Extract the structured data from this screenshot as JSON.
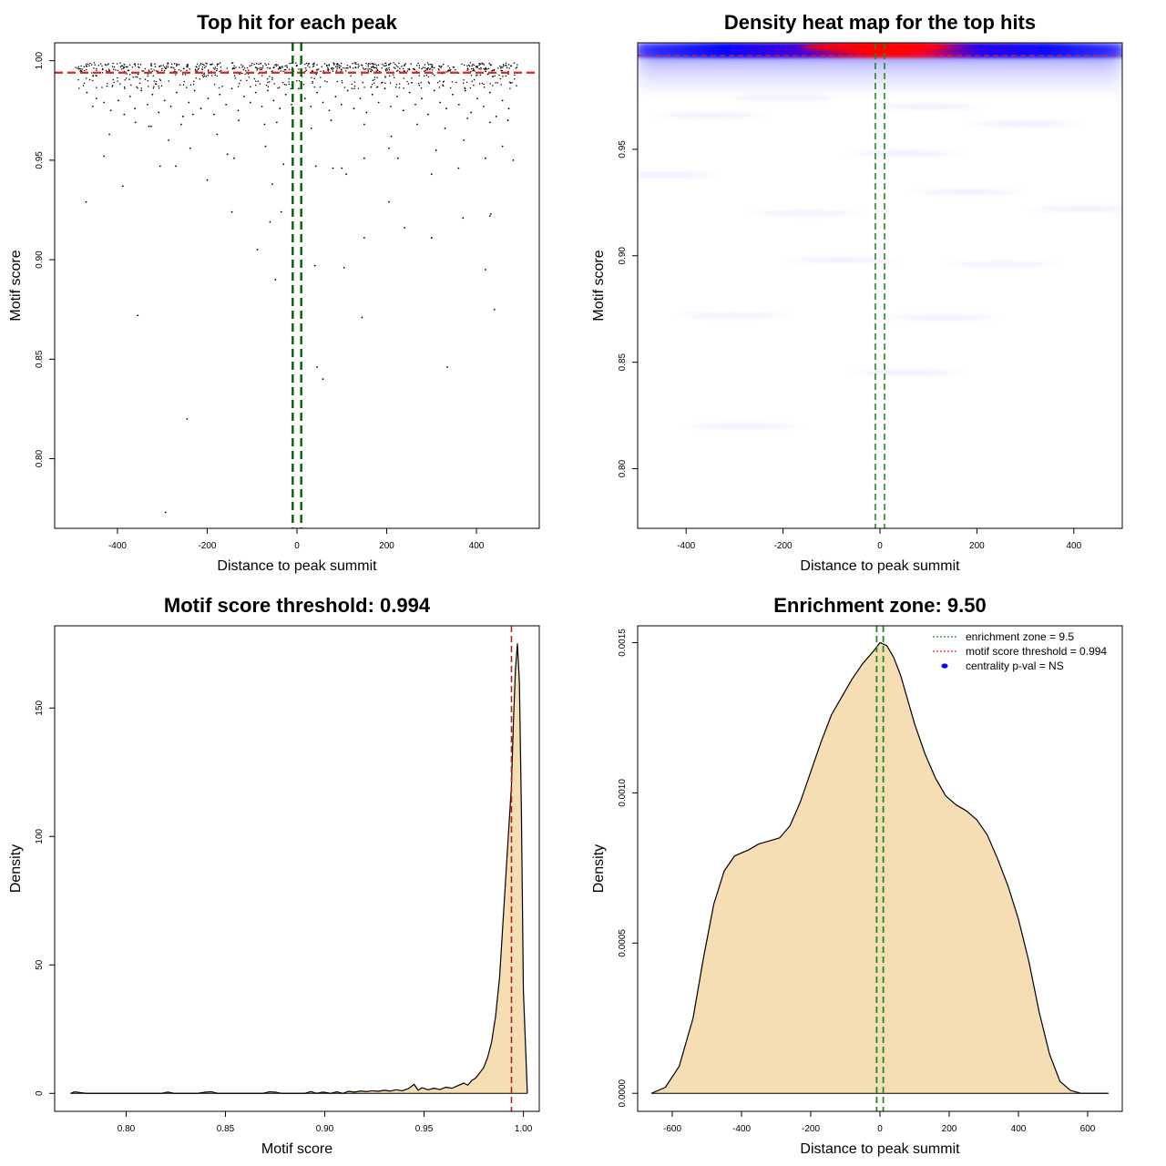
{
  "chart_data": [
    {
      "type": "scatter",
      "title": "Top hit for each peak",
      "xlabel": "Distance to peak summit",
      "ylabel": "Motif score",
      "xlim": [
        -540,
        540
      ],
      "ylim": [
        0.765,
        1.009
      ],
      "xticks": [
        -400,
        -200,
        0,
        200,
        400
      ],
      "yticks": [
        0.8,
        0.85,
        0.9,
        0.95,
        1.0
      ],
      "xtick_labels": [
        "-400",
        "-200",
        "0",
        "200",
        "400"
      ],
      "ytick_labels": [
        "0.80",
        "0.85",
        "0.90",
        "0.95",
        "1.00"
      ],
      "threshold_hline": 0.994,
      "zone_vlines": [
        -9.5,
        9.5
      ],
      "colors": {
        "points": "#000000",
        "threshold": "#dd2222",
        "zone": "#006400"
      },
      "points": [
        [
          -468,
          0.984
        ],
        [
          -455,
          0.977
        ],
        [
          -447,
          0.981
        ],
        [
          -430,
          0.979
        ],
        [
          -415,
          0.975
        ],
        [
          -398,
          0.98
        ],
        [
          -385,
          0.973
        ],
        [
          -372,
          0.982
        ],
        [
          -361,
          0.976
        ],
        [
          -347,
          0.985
        ],
        [
          -333,
          0.978
        ],
        [
          -322,
          0.983
        ],
        [
          -308,
          0.974
        ],
        [
          -295,
          0.98
        ],
        [
          -281,
          0.977
        ],
        [
          -268,
          0.984
        ],
        [
          -254,
          0.972
        ],
        [
          -241,
          0.979
        ],
        [
          -228,
          0.985
        ],
        [
          -214,
          0.976
        ],
        [
          -198,
          0.981
        ],
        [
          -185,
          0.973
        ],
        [
          -172,
          0.983
        ],
        [
          -158,
          0.978
        ],
        [
          -145,
          0.986
        ],
        [
          -131,
          0.975
        ],
        [
          -118,
          0.982
        ],
        [
          -104,
          0.979
        ],
        [
          -92,
          0.984
        ],
        [
          -78,
          0.977
        ],
        [
          -65,
          0.985
        ],
        [
          -52,
          0.98
        ],
        [
          -38,
          0.976
        ],
        [
          -25,
          0.983
        ],
        [
          -12,
          0.978
        ],
        [
          4,
          0.986
        ],
        [
          18,
          0.981
        ],
        [
          31,
          0.977
        ],
        [
          45,
          0.984
        ],
        [
          58,
          0.979
        ],
        [
          72,
          0.975
        ],
        [
          86,
          0.982
        ],
        [
          99,
          0.978
        ],
        [
          113,
          0.985
        ],
        [
          127,
          0.976
        ],
        [
          141,
          0.981
        ],
        [
          155,
          0.974
        ],
        [
          168,
          0.983
        ],
        [
          182,
          0.979
        ],
        [
          196,
          0.986
        ],
        [
          209,
          0.977
        ],
        [
          223,
          0.982
        ],
        [
          237,
          0.975
        ],
        [
          251,
          0.984
        ],
        [
          264,
          0.978
        ],
        [
          278,
          0.981
        ],
        [
          292,
          0.973
        ],
        [
          306,
          0.985
        ],
        [
          319,
          0.979
        ],
        [
          333,
          0.976
        ],
        [
          347,
          0.983
        ],
        [
          361,
          0.978
        ],
        [
          375,
          0.985
        ],
        [
          388,
          0.974
        ],
        [
          402,
          0.981
        ],
        [
          416,
          0.977
        ],
        [
          430,
          0.984
        ],
        [
          444,
          0.972
        ],
        [
          458,
          0.98
        ],
        [
          472,
          0.976
        ],
        [
          -418,
          0.963
        ],
        [
          -360,
          0.969
        ],
        [
          -325,
          0.967
        ],
        [
          -286,
          0.96
        ],
        [
          -232,
          0.973
        ],
        [
          -178,
          0.963
        ],
        [
          -130,
          0.97
        ],
        [
          -72,
          0.968
        ],
        [
          -45,
          0.969
        ],
        [
          32,
          0.966
        ],
        [
          76,
          0.97
        ],
        [
          150,
          0.968
        ],
        [
          210,
          0.962
        ],
        [
          268,
          0.968
        ],
        [
          330,
          0.966
        ],
        [
          380,
          0.971
        ],
        [
          430,
          0.969
        ],
        [
          470,
          0.97
        ],
        [
          -330,
          0.967
        ],
        [
          -258,
          0.968
        ],
        [
          -430,
          0.952
        ],
        [
          -388,
          0.937
        ],
        [
          -305,
          0.947
        ],
        [
          -270,
          0.947
        ],
        [
          -238,
          0.956
        ],
        [
          -200,
          0.94
        ],
        [
          -140,
          0.951
        ],
        [
          -70,
          0.957
        ],
        [
          -55,
          0.938
        ],
        [
          -30,
          0.948
        ],
        [
          42,
          0.947
        ],
        [
          80,
          0.946
        ],
        [
          100,
          0.946
        ],
        [
          110,
          0.943
        ],
        [
          150,
          0.951
        ],
        [
          205,
          0.956
        ],
        [
          225,
          0.951
        ],
        [
          300,
          0.943
        ],
        [
          310,
          0.955
        ],
        [
          360,
          0.946
        ],
        [
          372,
          0.96
        ],
        [
          420,
          0.951
        ],
        [
          458,
          0.957
        ],
        [
          482,
          0.95
        ],
        [
          -155,
          0.953
        ],
        [
          -470,
          0.929
        ],
        [
          -145,
          0.924
        ],
        [
          -60,
          0.919
        ],
        [
          -35,
          0.924
        ],
        [
          205,
          0.929
        ],
        [
          240,
          0.916
        ],
        [
          300,
          0.911
        ],
        [
          370,
          0.921
        ],
        [
          430,
          0.922
        ],
        [
          432,
          0.923
        ],
        [
          -88,
          0.905
        ],
        [
          -48,
          0.89
        ],
        [
          40,
          0.897
        ],
        [
          105,
          0.896
        ],
        [
          150,
          0.911
        ],
        [
          420,
          0.895
        ],
        [
          -355,
          0.872
        ],
        [
          145,
          0.871
        ],
        [
          440,
          0.875
        ],
        [
          45,
          0.846
        ],
        [
          58,
          0.84
        ],
        [
          335,
          0.846
        ],
        [
          -245,
          0.82
        ],
        [
          -293,
          0.773
        ]
      ]
    },
    {
      "type": "heatmap",
      "title": "Density heat map for the top hits",
      "xlabel": "Distance to peak summit",
      "ylabel": "Motif score",
      "xlim": [
        -500,
        500
      ],
      "ylim": [
        0.772,
        1.0
      ],
      "xticks": [
        -400,
        -200,
        0,
        200,
        400
      ],
      "yticks": [
        0.8,
        0.85,
        0.9,
        0.95
      ],
      "xtick_labels": [
        "-400",
        "-200",
        "0",
        "200",
        "400"
      ],
      "ytick_labels": [
        "0.80",
        "0.85",
        "0.90",
        "0.95"
      ],
      "threshold_hline": 0.994,
      "zone_vlines": [
        -9.5,
        9.5
      ],
      "colors": {
        "low": "#ffffff",
        "mid": "#0000ff",
        "high": "#ff0000",
        "threshold": "#dd2222",
        "zone": "#228b22"
      },
      "density_peak": [
        -10,
        0.998
      ],
      "density_peak_x_extent": [
        -180,
        120
      ],
      "faint_streaks": [
        [
          -200,
          0.974
        ],
        [
          100,
          0.97
        ],
        [
          -350,
          0.966
        ],
        [
          300,
          0.962
        ],
        [
          50,
          0.948
        ],
        [
          -450,
          0.938
        ],
        [
          180,
          0.93
        ],
        [
          -150,
          0.92
        ],
        [
          420,
          0.922
        ],
        [
          -80,
          0.898
        ],
        [
          250,
          0.896
        ],
        [
          -300,
          0.872
        ],
        [
          130,
          0.871
        ],
        [
          -280,
          0.82
        ],
        [
          60,
          0.845
        ]
      ]
    },
    {
      "type": "area",
      "title": "Motif score threshold: 0.994",
      "xlabel": "Motif score",
      "ylabel": "Density",
      "xlim": [
        0.764,
        1.008
      ],
      "ylim": [
        -7,
        182
      ],
      "xticks": [
        0.8,
        0.85,
        0.9,
        0.95,
        1.0
      ],
      "yticks": [
        0,
        50,
        100,
        150
      ],
      "xtick_labels": [
        "0.80",
        "0.85",
        "0.90",
        "0.95",
        "1.00"
      ],
      "ytick_labels": [
        "0",
        "50",
        "100",
        "150"
      ],
      "threshold_vline": 0.994,
      "colors": {
        "fill": "#f5deb3",
        "line": "#000000",
        "threshold": "#b22222"
      },
      "x": [
        0.772,
        0.774,
        0.777,
        0.78,
        0.8,
        0.818,
        0.821,
        0.824,
        0.836,
        0.84,
        0.843,
        0.846,
        0.849,
        0.869,
        0.872,
        0.875,
        0.878,
        0.89,
        0.893,
        0.896,
        0.899,
        0.903,
        0.906,
        0.909,
        0.912,
        0.915,
        0.918,
        0.921,
        0.924,
        0.927,
        0.93,
        0.933,
        0.936,
        0.939,
        0.942,
        0.945,
        0.947,
        0.949,
        0.952,
        0.955,
        0.958,
        0.961,
        0.964,
        0.967,
        0.97,
        0.972,
        0.974,
        0.976,
        0.978,
        0.98,
        0.982,
        0.984,
        0.986,
        0.988,
        0.99,
        0.992,
        0.994,
        0.995,
        0.996,
        0.997,
        0.998,
        0.999,
        1.0,
        1.002
      ],
      "y": [
        0,
        0.6,
        0.3,
        0,
        0,
        0,
        0.5,
        0,
        0,
        0.5,
        0.6,
        0,
        0,
        0,
        0.6,
        0.5,
        0,
        0,
        0.7,
        0,
        0.5,
        0,
        0.6,
        0,
        0.8,
        0.5,
        0.9,
        0.7,
        1.0,
        0.8,
        1.2,
        0.9,
        1.4,
        1.0,
        1.8,
        3.5,
        1.2,
        2.2,
        1.4,
        2.0,
        1.5,
        2.4,
        2.0,
        3.0,
        4.0,
        3.2,
        5.0,
        6.0,
        8.0,
        10.0,
        14.0,
        20.0,
        30.0,
        45.0,
        70.0,
        95.0,
        120.0,
        145.0,
        165.0,
        175.0,
        160.0,
        110.0,
        40.0,
        0
      ]
    },
    {
      "type": "area",
      "title": "Enrichment zone: 9.50",
      "xlabel": "Distance to peak summit",
      "ylabel": "Density",
      "xlim": [
        -700,
        700
      ],
      "ylim": [
        -6e-05,
        0.001556
      ],
      "xticks": [
        -600,
        -400,
        -200,
        0,
        200,
        400,
        600
      ],
      "yticks": [
        0.0,
        0.0005,
        0.001,
        0.0015
      ],
      "xtick_labels": [
        "-600",
        "-400",
        "-200",
        "0",
        "200",
        "400",
        "600"
      ],
      "ytick_labels": [
        "0.0000",
        "0.0005",
        "0.0010",
        "0.0015"
      ],
      "zone_vlines": [
        -9.5,
        9.5
      ],
      "colors": {
        "fill": "#f5deb3",
        "line": "#000000",
        "zone": "#228b22",
        "threshold": "#dd2222",
        "pval": "#0000ff"
      },
      "x": [
        -660,
        -620,
        -580,
        -540,
        -510,
        -480,
        -450,
        -420,
        -400,
        -380,
        -350,
        -320,
        -290,
        -260,
        -230,
        -200,
        -170,
        -140,
        -110,
        -80,
        -50,
        -20,
        0,
        20,
        40,
        60,
        80,
        100,
        130,
        160,
        190,
        220,
        250,
        280,
        310,
        340,
        370,
        400,
        430,
        460,
        490,
        520,
        550,
        580,
        620,
        660
      ],
      "y": [
        0,
        2e-05,
        9e-05,
        0.00025,
        0.00045,
        0.00063,
        0.00074,
        0.00079,
        0.0008,
        0.00081,
        0.00083,
        0.00084,
        0.00085,
        0.00089,
        0.00097,
        0.00107,
        0.00117,
        0.00126,
        0.00132,
        0.00138,
        0.00143,
        0.00147,
        0.0015,
        0.00149,
        0.00145,
        0.00139,
        0.00131,
        0.00123,
        0.00113,
        0.00105,
        0.00099,
        0.00096,
        0.00094,
        0.00091,
        0.00086,
        0.00078,
        0.00069,
        0.00058,
        0.00044,
        0.00027,
        0.00013,
        4e-05,
        1e-05,
        0,
        0,
        0
      ],
      "legend": {
        "items": [
          {
            "label": "enrichment zone = 9.5",
            "kind": "line",
            "color": "#228b22"
          },
          {
            "label": "motif score threshold = 0.994",
            "kind": "line",
            "color": "#dd2222"
          },
          {
            "label": "centrality p-val = NS",
            "kind": "point",
            "color": "#0000ff"
          }
        ]
      }
    }
  ]
}
